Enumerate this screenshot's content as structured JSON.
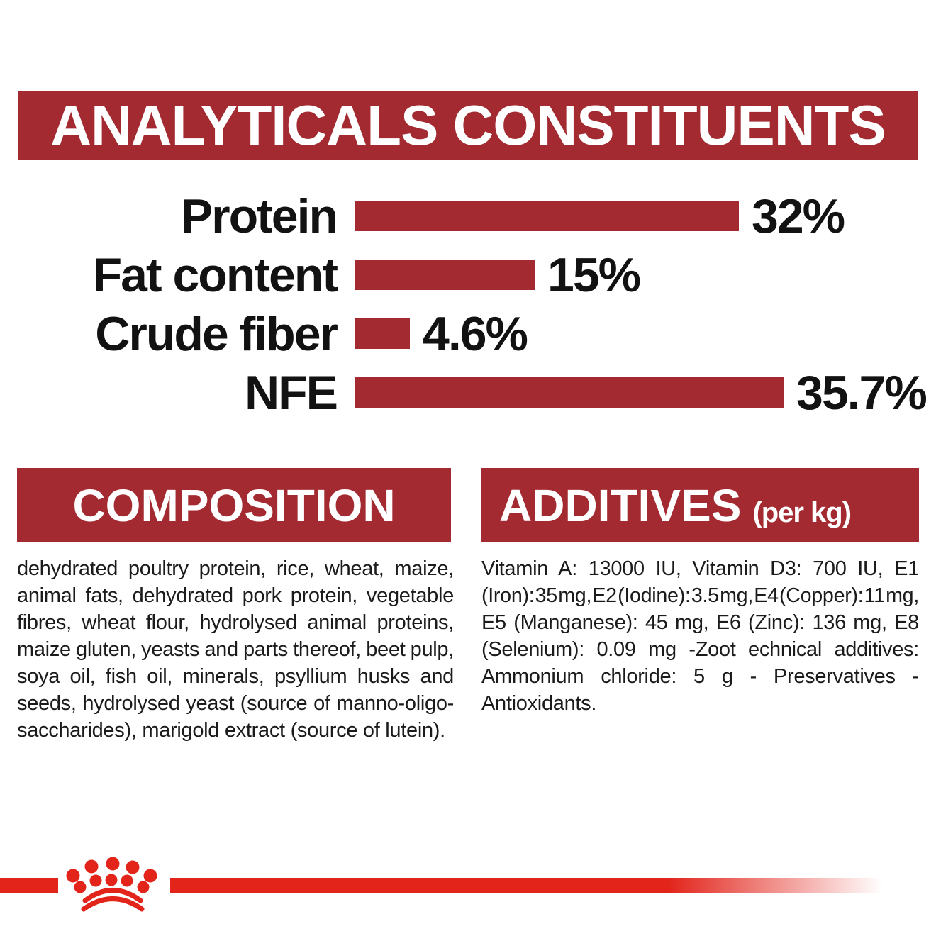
{
  "header": {
    "title": "ANALYTICALS CONSTITUENTS"
  },
  "chart_data": {
    "type": "bar",
    "orientation": "horizontal",
    "title": "ANALYTICALS CONSTITUENTS",
    "categories": [
      "Protein",
      "Fat content",
      "Crude fiber",
      "NFE"
    ],
    "values": [
      32,
      15,
      4.6,
      35.7
    ],
    "value_labels": [
      "32%",
      "15%",
      "4.6%",
      "35.7%"
    ],
    "unit": "%",
    "xlim": [
      0,
      40
    ],
    "grid": false,
    "legend": false,
    "bar_color": "#A32A30"
  },
  "composition": {
    "title": "COMPOSITION",
    "lines": [
      "dehydrated poultry protein, rice, wheat, maize,",
      "animal fats, dehydrated pork protein, vegetable",
      "fibres, wheat flour, hydrolysed animal proteins,",
      "maize gluten, yeasts and parts thereof, beet pulp,",
      "soya oil, fish oil, minerals, psyllium husks and",
      "seeds, hydrolysed yeast (source of manno-oligo-",
      "saccharides), marigold extract (source of lutein)."
    ]
  },
  "additives": {
    "title": "ADDITIVES",
    "title_suffix": "(per kg)",
    "lines": [
      "Vitamin A: 13000 IU, Vitamin D3: 700 IU, E1",
      "(Iron): 35 mg, E2 (Iodine): 3.5 mg, E4 (Copper): 11 mg,",
      "E5 (Manganese): 45 mg, E6 (Zinc): 136 mg, E8",
      "(Selenium): 0.09 mg -Zoot echnical additives:",
      "Ammonium chloride: 5 g - Preservatives -",
      "Antioxidants."
    ]
  },
  "footer": {
    "brand_icon": "royal-canin-crown"
  },
  "colors": {
    "dark_red": "#A32A30",
    "bright_red": "#E2241B",
    "text_black": "#121212",
    "background": "#FFFFFF"
  }
}
